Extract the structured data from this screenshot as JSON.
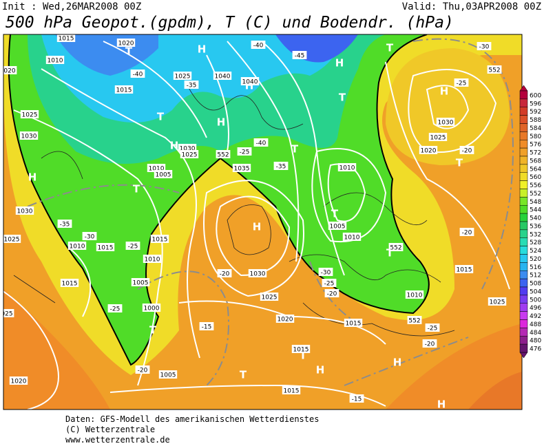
{
  "header": {
    "init": "Init : Wed,26MAR2008 00Z",
    "valid": "Valid: Thu,03APR2008 00Z",
    "title": "500 hPa Geopot.(gpdm), T (C) und Bodendr. (hPa)"
  },
  "colorbar": {
    "levels": [
      600,
      596,
      592,
      588,
      584,
      580,
      576,
      572,
      568,
      564,
      560,
      556,
      552,
      548,
      544,
      540,
      536,
      532,
      528,
      524,
      520,
      516,
      512,
      508,
      504,
      500,
      496,
      492,
      488,
      484,
      480,
      476
    ],
    "colors": [
      "#b4003c",
      "#c8283c",
      "#d23c28",
      "#dc5028",
      "#e06428",
      "#e87828",
      "#f08c28",
      "#f0a028",
      "#f0b428",
      "#f0c828",
      "#f0dc28",
      "#f0f028",
      "#c8f028",
      "#78e628",
      "#50dc28",
      "#28d23c",
      "#28c864",
      "#28d28c",
      "#28dcb4",
      "#28dcdc",
      "#28c8f0",
      "#28b4f0",
      "#3c8cf0",
      "#3c64f0",
      "#503cf0",
      "#783cf0",
      "#a03cf0",
      "#c83cf0",
      "#dc28dc",
      "#b428b4",
      "#8c1e8c",
      "#64146e"
    ]
  },
  "pressure_centers": [
    "H",
    "H",
    "H",
    "H",
    "H",
    "H",
    "H",
    "H",
    "H",
    "H",
    "H",
    "T",
    "T",
    "T",
    "T",
    "T",
    "T",
    "T",
    "T",
    "T",
    "T",
    "T",
    "T"
  ],
  "isobar_labels": [
    "1015",
    "1020",
    "1010",
    "1025",
    "1040",
    "1040",
    "1015",
    "1025",
    "1030",
    "1030",
    "1025",
    "1010",
    "1005",
    "1035",
    "1010",
    "1030",
    "1025",
    "1020",
    "1030",
    "1025",
    "1010",
    "1015",
    "1015",
    "1010",
    "1015",
    "1005",
    "1030",
    "1000",
    "1025",
    "1020",
    "1015",
    "1010",
    "1015",
    "1015",
    "1005",
    "1020",
    "1015",
    "1005",
    "1010",
    "1025",
    "020",
    "025"
  ],
  "isotherm_labels": [
    "-40",
    "-45",
    "-40",
    "-35",
    "-30",
    "-25",
    "-20",
    "-25",
    "-40",
    "-35",
    "-35",
    "-30",
    "-25",
    "-20",
    "-30",
    "-25",
    "-20",
    "-25",
    "-15",
    "-20",
    "-25",
    "-20",
    "-15",
    "-20",
    "552",
    "552",
    "552",
    "552"
  ],
  "footer": [
    "Daten: GFS-Modell des amerikanischen Wetterdienstes",
    "(C) Wetterzentrale",
    "www.wetterzentrale.de"
  ]
}
